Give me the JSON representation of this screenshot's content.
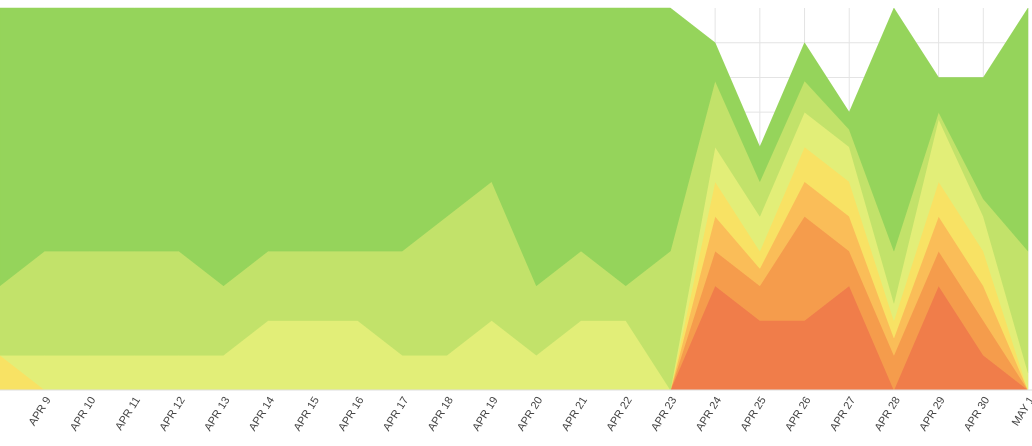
{
  "chart_data": {
    "type": "stacked-area",
    "categories": [
      null,
      "APR 9",
      "APR 10",
      "APR 11",
      "APR 12",
      "APR 13",
      "APR 14",
      "APR 15",
      "APR 16",
      "APR 17",
      "APR 18",
      "APR 19",
      "APR 20",
      "APR 21",
      "APR 22",
      "APR 23",
      "APR 24",
      "APR 25",
      "APR 26",
      "APR 27",
      "APR 28",
      "APR 29",
      "APR 30",
      "MAY 1"
    ],
    "ylim": [
      0,
      11
    ],
    "grid": true,
    "series": [
      {
        "color": "#f07d4a",
        "values": [
          0,
          0,
          0,
          0,
          0,
          0,
          0,
          0,
          0,
          0,
          0,
          0,
          0,
          0,
          0,
          0,
          3,
          2,
          2,
          3,
          0,
          3,
          1,
          0
        ]
      },
      {
        "color": "#f59c4c",
        "values": [
          0,
          0,
          0,
          0,
          0,
          0,
          0,
          0,
          0,
          0,
          0,
          0,
          0,
          0,
          0,
          0,
          1,
          1,
          3,
          1,
          1,
          1,
          1,
          0
        ]
      },
      {
        "color": "#fabd58",
        "values": [
          0,
          0,
          0,
          0,
          0,
          0,
          0,
          0,
          0,
          0,
          0,
          0,
          0,
          0,
          0,
          0,
          1,
          0.5,
          1,
          1,
          0.5,
          1,
          1,
          0
        ]
      },
      {
        "color": "#f8e264",
        "values": [
          1,
          0,
          0,
          0,
          0,
          0,
          0,
          0,
          0,
          0,
          0,
          0,
          0,
          0,
          0,
          0,
          1,
          0.5,
          1,
          1,
          0.5,
          1,
          1,
          0
        ]
      },
      {
        "color": "#e2ee78",
        "values": [
          0,
          1,
          1,
          1,
          1,
          1,
          2,
          2,
          2,
          1,
          1,
          2,
          1,
          2,
          2,
          0,
          1,
          1,
          1,
          1,
          0.5,
          1.8,
          1,
          0.5
        ]
      },
      {
        "color": "#c2e26a",
        "values": [
          2,
          3,
          3,
          3,
          3,
          2,
          2,
          2,
          2,
          3,
          4,
          4,
          2,
          2,
          1,
          4,
          1.9,
          1,
          0.9,
          0.5,
          1.5,
          0.2,
          0.5,
          3.5
        ]
      },
      {
        "color": "#95d45b",
        "values": [
          8,
          7,
          7,
          7,
          7,
          8,
          7,
          7,
          7,
          7,
          6,
          5,
          8,
          7,
          8,
          7,
          1.1,
          1,
          1.1,
          0.5,
          7,
          1,
          3.5,
          7
        ]
      }
    ]
  }
}
